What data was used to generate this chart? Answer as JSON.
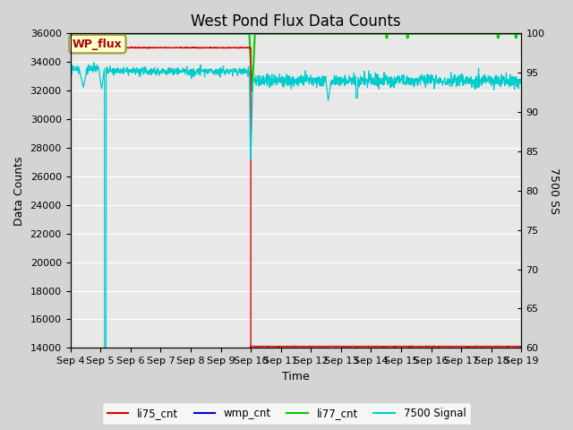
{
  "title": "West Pond Flux Data Counts",
  "xlabel": "Time",
  "ylabel_left": "Data Counts",
  "ylabel_right": "7500 SS",
  "annotation_text": "WP_flux",
  "ylim_left": [
    14000,
    36000
  ],
  "ylim_right": [
    60,
    100
  ],
  "yticks_left": [
    14000,
    16000,
    18000,
    20000,
    22000,
    24000,
    26000,
    28000,
    30000,
    32000,
    34000,
    36000
  ],
  "yticks_right": [
    60,
    65,
    70,
    75,
    80,
    85,
    90,
    95,
    100
  ],
  "xtick_labels": [
    "Sep 4",
    "Sep 5",
    "Sep 6",
    "Sep 7",
    "Sep 8",
    "Sep 9",
    "Sep 10",
    "Sep 11",
    "Sep 12",
    "Sep 13",
    "Sep 14",
    "Sep 15",
    "Sep 16",
    "Sep 17",
    "Sep 18",
    "Sep 19"
  ],
  "n_days": 16,
  "fig_bg_color": "#d4d4d4",
  "plot_bg_color": "#e8e8e8",
  "grid_color": "#ffffff",
  "li75_color": "#dd0000",
  "wmp_color": "#0000cc",
  "li77_color": "#00cc00",
  "signal_color": "#00cccc",
  "legend_labels": [
    "li75_cnt",
    "wmp_cnt",
    "li77_cnt",
    "7500 Signal"
  ],
  "title_fontsize": 12,
  "axis_fontsize": 9,
  "tick_fontsize": 8,
  "annot_facecolor": "#ffffcc",
  "annot_edgecolor": "#999944",
  "annot_textcolor": "#aa0000",
  "annot_fontsize": 9
}
